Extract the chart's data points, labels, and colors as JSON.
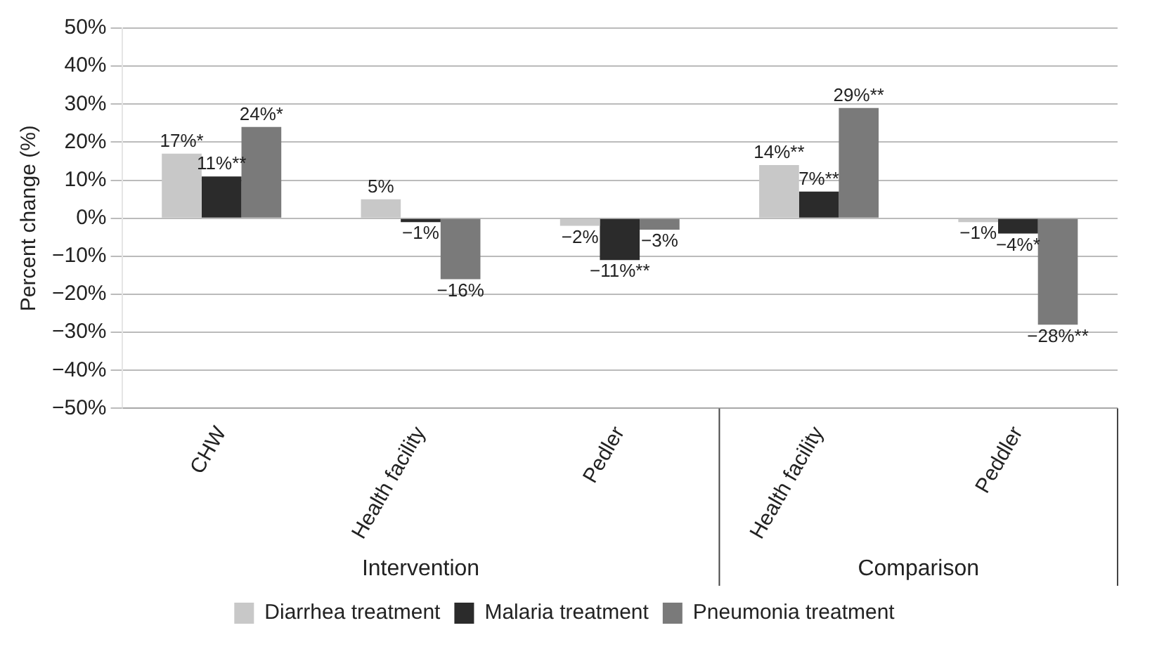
{
  "chart_data": {
    "type": "bar",
    "ylabel": "Percent change (%)",
    "categories": [
      "CHW",
      "Health facility",
      "Pedler",
      "Health facility",
      "Peddler"
    ],
    "series": [
      {
        "name": "Diarrhea treatment",
        "color": "#c8c8c8",
        "values": [
          17,
          5,
          -2,
          14,
          -1
        ],
        "value_labels": [
          "17%*",
          "5%",
          "−2%",
          "14%**",
          "−1%"
        ]
      },
      {
        "name": "Malaria treatment",
        "color": "#2b2b2b",
        "values": [
          11,
          -1,
          -11,
          7,
          -4
        ],
        "value_labels": [
          "11%**",
          "−1%",
          "−11%**",
          "7%**",
          "−4%*"
        ]
      },
      {
        "name": "Pneumonia treatment",
        "color": "#7a7a7a",
        "values": [
          24,
          -16,
          -3,
          29,
          -28
        ],
        "value_labels": [
          "24%*",
          "−16%",
          "−3%",
          "29%**",
          "−28%**"
        ]
      }
    ],
    "annotations": [
      "Intervention",
      "Comparison"
    ],
    "ylim": [
      -50,
      50
    ],
    "yticks": [
      {
        "value": -50,
        "label": "−50%"
      },
      {
        "value": -40,
        "label": "−40%"
      },
      {
        "value": -30,
        "label": "−30%"
      },
      {
        "value": -20,
        "label": "−20%"
      },
      {
        "value": -10,
        "label": "−10%"
      },
      {
        "value": 0,
        "label": "0%"
      },
      {
        "value": 10,
        "label": "10%"
      },
      {
        "value": 20,
        "label": "20%"
      },
      {
        "value": 30,
        "label": "30%"
      },
      {
        "value": 40,
        "label": "40%"
      },
      {
        "value": 50,
        "label": "50%"
      }
    ],
    "grid": "y",
    "legend": "bottom"
  }
}
